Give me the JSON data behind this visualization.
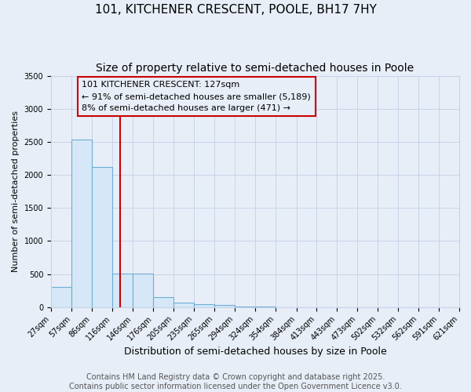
{
  "title": "101, KITCHENER CRESCENT, POOLE, BH17 7HY",
  "subtitle": "Size of property relative to semi-detached houses in Poole",
  "xlabel": "Distribution of semi-detached houses by size in Poole",
  "ylabel": "Number of semi-detached properties",
  "bin_edges": [
    27,
    57,
    86,
    116,
    146,
    176,
    205,
    235,
    265,
    294,
    324,
    354,
    384,
    413,
    443,
    473,
    502,
    532,
    562,
    591,
    621
  ],
  "bar_heights": [
    310,
    2540,
    2120,
    510,
    510,
    150,
    70,
    40,
    30,
    5,
    4,
    3,
    2,
    1,
    1,
    1,
    0,
    0,
    0,
    0
  ],
  "bar_facecolor": "#d6e8f7",
  "bar_edgecolor": "#6baed6",
  "vline_x": 127,
  "vline_color": "#cc0000",
  "ylim": [
    0,
    3500
  ],
  "yticks": [
    0,
    500,
    1000,
    1500,
    2000,
    2500,
    3000,
    3500
  ],
  "annotation_title": "101 KITCHENER CRESCENT: 127sqm",
  "annotation_line1": "← 91% of semi-detached houses are smaller (5,189)",
  "annotation_line2": "8% of semi-detached houses are larger (471) →",
  "annotation_box_color": "#cc0000",
  "footer_line1": "Contains HM Land Registry data © Crown copyright and database right 2025.",
  "footer_line2": "Contains public sector information licensed under the Open Government Licence v3.0.",
  "bg_color": "#e8eef8",
  "grid_color": "#c8d4e8",
  "title_fontsize": 11,
  "subtitle_fontsize": 10,
  "axis_label_fontsize": 9,
  "tick_fontsize": 7,
  "annotation_fontsize": 8,
  "footer_fontsize": 7,
  "ylabel_fontsize": 8
}
